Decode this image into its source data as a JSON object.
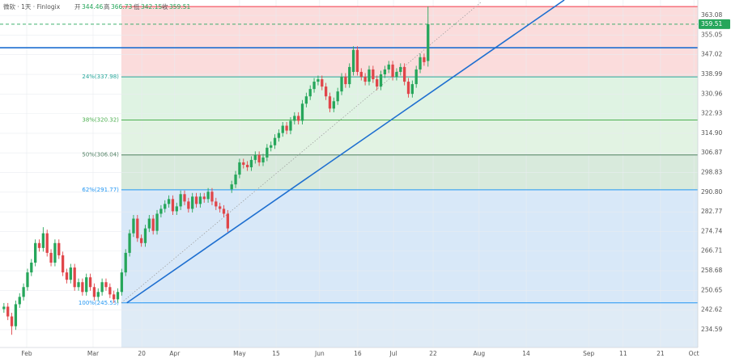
{
  "chart_data": {
    "type": "candlestick",
    "header": {
      "symbol": "微软 · 1天 · Finlogix",
      "open_label": "开",
      "open": 344.46,
      "high_label": "高",
      "high": 366.73,
      "low_label": "低",
      "low": 342.15,
      "close_label": "收",
      "close": 359.51
    },
    "up_color": "#26a65b",
    "down_color": "#e0464a",
    "candles": [
      [
        243,
        245.5,
        241.5,
        244
      ],
      [
        244,
        245.5,
        238.5,
        240
      ],
      [
        240,
        241.5,
        232.5,
        236
      ],
      [
        236,
        246.5,
        234.5,
        245
      ],
      [
        245,
        249.5,
        243.5,
        248
      ],
      [
        248,
        253.5,
        246.5,
        252
      ],
      [
        252,
        259.5,
        250.5,
        258
      ],
      [
        258,
        263.5,
        256.5,
        262
      ],
      [
        262,
        271.5,
        260.5,
        270
      ],
      [
        270,
        271.5,
        266.5,
        268
      ],
      [
        268,
        276.5,
        266.5,
        274
      ],
      [
        274,
        275.5,
        264.5,
        266
      ],
      [
        266,
        267.5,
        260.5,
        262
      ],
      [
        262,
        271.5,
        260.5,
        270
      ],
      [
        270,
        271.5,
        263.5,
        265
      ],
      [
        265,
        266.5,
        256.5,
        258
      ],
      [
        258,
        259.5,
        253.5,
        255
      ],
      [
        255,
        261.5,
        253.5,
        260
      ],
      [
        260,
        261.5,
        250.5,
        252
      ],
      [
        252,
        255.5,
        250.5,
        254
      ],
      [
        254,
        255.5,
        248.5,
        250
      ],
      [
        250,
        257.5,
        248.5,
        256
      ],
      [
        256,
        257.5,
        250.5,
        252
      ],
      [
        252,
        253.5,
        246.5,
        248
      ],
      [
        248,
        251.5,
        246.5,
        250
      ],
      [
        250,
        255.5,
        248.5,
        254
      ],
      [
        254,
        255.5,
        250.5,
        252
      ],
      [
        252,
        253.5,
        247.5,
        249
      ],
      [
        249,
        250.5,
        245.5,
        247
      ],
      [
        247,
        251.5,
        245.5,
        250
      ],
      [
        250,
        259.5,
        248.5,
        258
      ],
      [
        258,
        267.5,
        256.5,
        266
      ],
      [
        266,
        275.5,
        264.5,
        274
      ],
      [
        274,
        281.5,
        272.5,
        280
      ],
      [
        280,
        281.5,
        270.5,
        272
      ],
      [
        272,
        273.5,
        268.5,
        270
      ],
      [
        270,
        277.5,
        268.5,
        276
      ],
      [
        276,
        281.5,
        274.5,
        280
      ],
      [
        280,
        281.5,
        273.5,
        275
      ],
      [
        275,
        283.5,
        273.5,
        282
      ],
      [
        282,
        285.5,
        280.5,
        284
      ],
      [
        284,
        287.5,
        282.5,
        286
      ],
      [
        286,
        289.5,
        284.5,
        288
      ],
      [
        288,
        289.5,
        281.5,
        283
      ],
      [
        283,
        286.5,
        281.5,
        285
      ],
      [
        285,
        291.5,
        283.5,
        290
      ],
      [
        290,
        291.5,
        285.5,
        287
      ],
      [
        287,
        288.5,
        282.5,
        284
      ],
      [
        284,
        290.5,
        282.5,
        289
      ],
      [
        289,
        290.5,
        284.5,
        286
      ],
      [
        286,
        290.5,
        284.5,
        289
      ],
      [
        289,
        290.5,
        286.5,
        288
      ],
      [
        288,
        292.5,
        286.5,
        291
      ],
      [
        291,
        292.5,
        285.5,
        287
      ],
      [
        287,
        288.5,
        283.5,
        285
      ],
      [
        285,
        286.5,
        282.5,
        284
      ],
      [
        284,
        285.5,
        280.5,
        282
      ],
      [
        282,
        283.5,
        274.5,
        276
      ],
      [
        292,
        295.5,
        290.5,
        294
      ],
      [
        294,
        299.5,
        292.5,
        298
      ],
      [
        298,
        304.5,
        296.5,
        303
      ],
      [
        303,
        304.5,
        300.5,
        302
      ],
      [
        302,
        303.5,
        299.5,
        301
      ],
      [
        301,
        305.5,
        299.5,
        304
      ],
      [
        304,
        307.5,
        302.5,
        306
      ],
      [
        306,
        307.5,
        301.5,
        303
      ],
      [
        303,
        306.5,
        301.5,
        305
      ],
      [
        305,
        310.5,
        303.5,
        309
      ],
      [
        309,
        311.5,
        307.5,
        310
      ],
      [
        310,
        314.5,
        308.5,
        313
      ],
      [
        313,
        316.5,
        311.5,
        315
      ],
      [
        315,
        319.5,
        313.5,
        318
      ],
      [
        318,
        319.5,
        314.5,
        316
      ],
      [
        316,
        321.5,
        314.5,
        320
      ],
      [
        320,
        323.5,
        318.5,
        322
      ],
      [
        322,
        323.5,
        318.5,
        320
      ],
      [
        320,
        328.5,
        318.5,
        327
      ],
      [
        327,
        331.5,
        325.5,
        330
      ],
      [
        330,
        334.5,
        328.5,
        333
      ],
      [
        333,
        337.5,
        331.5,
        336
      ],
      [
        336,
        338.5,
        334.5,
        337
      ],
      [
        337,
        338.5,
        332.5,
        334
      ],
      [
        334,
        335.5,
        328.5,
        330
      ],
      [
        330,
        331.5,
        323.5,
        325
      ],
      [
        325,
        329.5,
        323.5,
        328
      ],
      [
        328,
        333.5,
        326.5,
        332
      ],
      [
        332,
        339.5,
        330.5,
        338
      ],
      [
        338,
        339.5,
        333.5,
        335
      ],
      [
        335,
        343.5,
        333.5,
        342
      ],
      [
        340,
        350.5,
        338.5,
        349
      ],
      [
        349,
        350.5,
        338.5,
        340
      ],
      [
        340,
        341.5,
        336.5,
        338
      ],
      [
        338,
        339.5,
        334.5,
        336
      ],
      [
        336,
        342.5,
        334.5,
        341
      ],
      [
        341,
        342.5,
        335.5,
        337
      ],
      [
        337,
        338.5,
        332.5,
        334
      ],
      [
        334,
        340.5,
        332.5,
        339
      ],
      [
        339,
        342.5,
        337.5,
        341
      ],
      [
        341,
        344.5,
        339.5,
        343
      ],
      [
        343,
        344.5,
        336.5,
        338
      ],
      [
        338,
        341.5,
        336.5,
        340
      ],
      [
        340,
        343.5,
        338.5,
        342
      ],
      [
        342,
        343.5,
        334.5,
        336
      ],
      [
        336,
        337.5,
        329.5,
        331
      ],
      [
        331,
        336.5,
        329.5,
        335
      ],
      [
        335,
        342.5,
        333.5,
        341
      ],
      [
        341,
        347.5,
        339.5,
        346
      ],
      [
        346,
        347.5,
        342.5,
        344
      ],
      [
        344.46,
        366.73,
        342.15,
        359.51
      ]
    ],
    "xlim": [
      -1,
      176.7
    ],
    "xticks": [
      {
        "value": 5.8,
        "label": "Feb"
      },
      {
        "value": 22.7,
        "label": "Mar"
      },
      {
        "value": 35.1,
        "label": "20"
      },
      {
        "value": 43.5,
        "label": "Apr"
      },
      {
        "value": 60,
        "label": "May"
      },
      {
        "value": 69.3,
        "label": "15"
      },
      {
        "value": 80.4,
        "label": "Jun"
      },
      {
        "value": 90.1,
        "label": "16"
      },
      {
        "value": 99.2,
        "label": "Jul"
      },
      {
        "value": 109.3,
        "label": "22"
      },
      {
        "value": 121,
        "label": "Aug"
      },
      {
        "value": 133,
        "label": "14"
      },
      {
        "value": 148.9,
        "label": "Sep"
      },
      {
        "value": 157.7,
        "label": "11"
      },
      {
        "value": 167.2,
        "label": "21"
      },
      {
        "value": 175.7,
        "label": "Oct"
      }
    ],
    "ylim": [
      227.3,
      369.4
    ],
    "yticks": [
      363.08,
      355.05,
      347.02,
      338.99,
      330.96,
      322.93,
      {
        "value": 314.9,
        "label": "314.90"
      },
      306.87,
      298.83,
      {
        "value": 290.8,
        "label": "290.80"
      },
      282.77,
      274.74,
      266.71,
      258.68,
      250.65,
      242.62,
      234.59
    ],
    "grid": true,
    "fib": {
      "start": 29.9,
      "high": 366.73,
      "high_color": "#f23645",
      "levels": [
        {
          "value": 337.98,
          "label": "24%(337.98)",
          "color": "#26a69a"
        },
        {
          "value": 320.32,
          "label": "38%(320.32)",
          "color": "#4caf50"
        },
        {
          "value": 306.04,
          "label": "50%(306.04)",
          "color": "#4f7f62"
        },
        {
          "value": 291.77,
          "label": "62%(291.77)",
          "color": "#2196f3"
        },
        {
          "value": 245.55,
          "label": "100%(245.55)",
          "color": "#2196f3"
        }
      ],
      "zone_colors": [
        "#fbdcdc",
        "#dff3e3",
        "#e2f3e3",
        "#d8eadc",
        "#d8e8f8",
        "#dfebf6"
      ]
    },
    "hline": {
      "value": 349.87,
      "color": "#1e6fd0"
    },
    "price_line": {
      "value": 359.51,
      "color": "#26a65b"
    },
    "trendline": {
      "x": [
        31.3,
        142.7
      ],
      "y": [
        245.55,
        369.4
      ],
      "color": "#1e6fd0"
    },
    "diagonal": {
      "x": [
        29.9,
        121.5
      ],
      "y": [
        245.55,
        368.5
      ],
      "color": "#999999"
    }
  }
}
